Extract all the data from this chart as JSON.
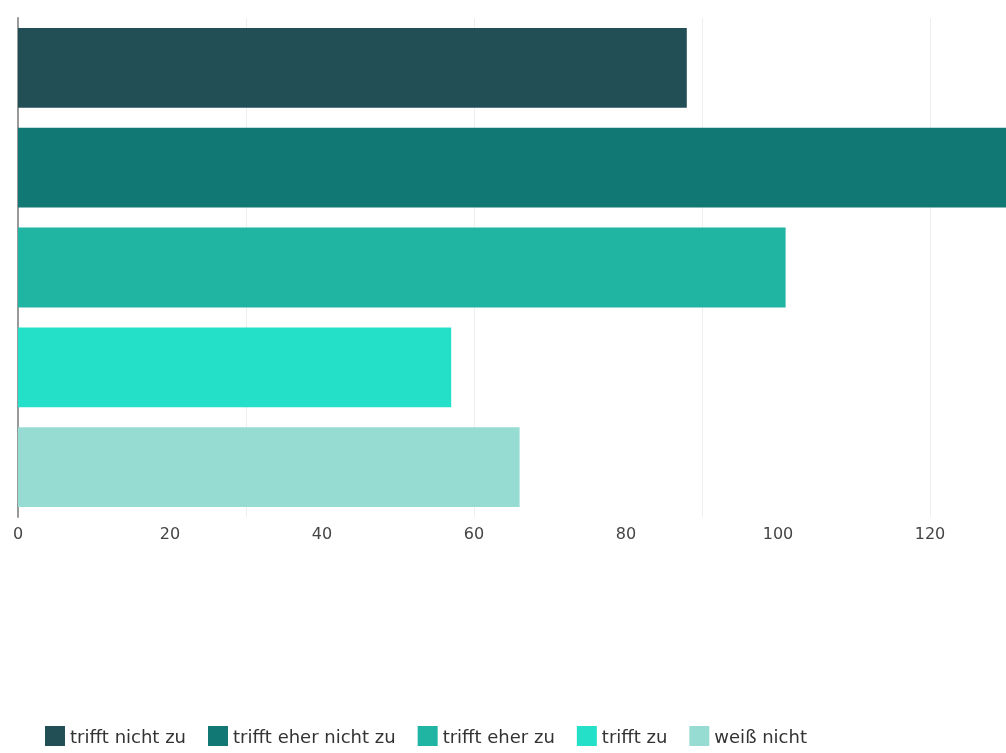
{
  "chart_data": {
    "type": "bar",
    "orientation": "horizontal",
    "stacked": true,
    "categories": [
      null,
      null,
      null,
      null,
      null
    ],
    "series": [
      {
        "name": "trifft nicht zu",
        "color": "#224f55",
        "values": [
          88,
          null,
          null,
          null,
          null
        ]
      },
      {
        "name": "trifft eher nicht zu",
        "color": "#117873",
        "values": [
          null,
          130,
          null,
          null,
          null
        ]
      },
      {
        "name": "trifft eher zu",
        "color": "#20b5a3",
        "values": [
          null,
          null,
          101,
          null,
          null
        ]
      },
      {
        "name": "trifft zu",
        "color": "#24e0c9",
        "values": [
          null,
          null,
          null,
          57,
          null
        ]
      },
      {
        "name": "weiß nicht",
        "color": "#97dcd3",
        "values": [
          null,
          null,
          null,
          null,
          66
        ]
      }
    ],
    "xlim": [
      0,
      130
    ],
    "xticks": [
      0,
      20,
      40,
      60,
      80,
      100,
      120
    ],
    "grid": "x",
    "legend": "bottom"
  }
}
